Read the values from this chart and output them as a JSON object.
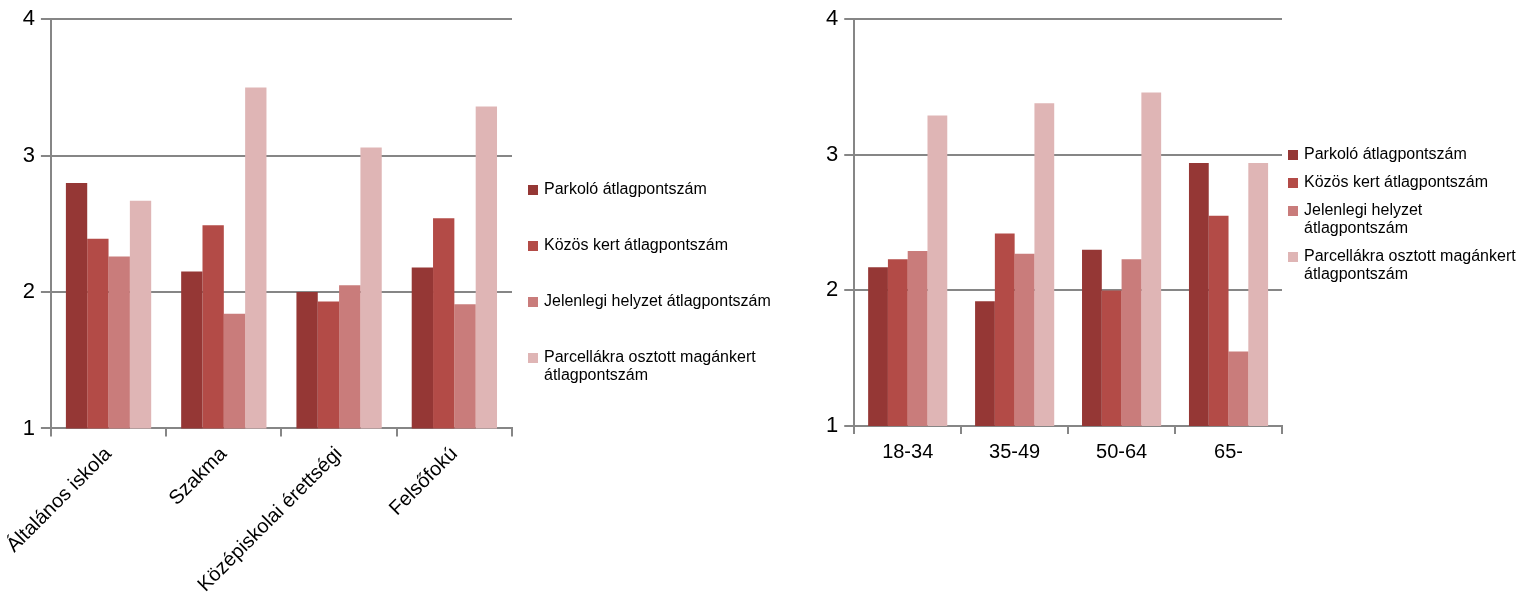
{
  "chart_data": [
    {
      "type": "bar",
      "categories": [
        "Általános iskola",
        "Szakma",
        "Középiskolai érettségi",
        "Felsőfokú"
      ],
      "ylim": [
        1,
        4
      ],
      "yticks": [
        1,
        2,
        3,
        4
      ],
      "grid": "y",
      "legend": "right",
      "series": [
        {
          "name": "Parkoló átlagpontszám",
          "color": "#953735",
          "values": [
            2.8,
            2.15,
            2.0,
            2.18
          ]
        },
        {
          "name": "Közös kert átlagpontszám",
          "color": "#b34b47",
          "values": [
            2.39,
            2.49,
            1.93,
            2.54
          ]
        },
        {
          "name": "Jelenlegi helyzet átlagpontszám",
          "color": "#c97c7b",
          "values": [
            2.26,
            1.84,
            2.05,
            1.91
          ]
        },
        {
          "name": "Parcellákra osztott magánkert átlagpontszám",
          "color": "#dfb5b5",
          "values": [
            2.67,
            3.5,
            3.06,
            3.36
          ]
        }
      ]
    },
    {
      "type": "bar",
      "categories": [
        "18-34",
        "35-49",
        "50-64",
        "65-"
      ],
      "ylim": [
        1,
        4
      ],
      "yticks": [
        1,
        2,
        3,
        4
      ],
      "grid": "y",
      "legend": "right",
      "series": [
        {
          "name": "Parkoló átlagpontszám",
          "color": "#953735",
          "values": [
            2.17,
            1.92,
            2.3,
            2.94
          ]
        },
        {
          "name": "Közös kert átlagpontszám",
          "color": "#b34b47",
          "values": [
            2.23,
            2.42,
            2.0,
            2.55
          ]
        },
        {
          "name": "Jelenlegi helyzet átlagpontszám",
          "color": "#c97c7b",
          "values": [
            2.29,
            2.27,
            2.23,
            1.55
          ]
        },
        {
          "name": "Parcellákra osztott magánkert átlagpontszám",
          "color": "#dfb5b5",
          "values": [
            3.29,
            3.38,
            3.46,
            2.94
          ]
        }
      ]
    }
  ]
}
